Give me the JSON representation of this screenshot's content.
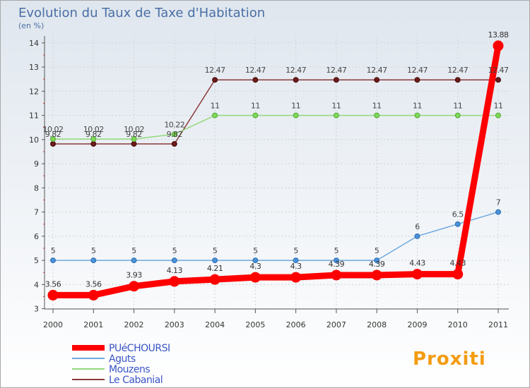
{
  "chart_data": {
    "type": "line",
    "title": "Evolution du Taux de Taxe d'Habitation",
    "ylabel": "(en %)",
    "xlabel": "",
    "x": [
      "2000",
      "2001",
      "2002",
      "2003",
      "2004",
      "2005",
      "2006",
      "2007",
      "2008",
      "2009",
      "2010",
      "2011"
    ],
    "ylim": [
      3,
      14
    ],
    "yticks": [
      "3",
      "4",
      "5",
      "6",
      "7",
      "8",
      "9",
      "10",
      "11",
      "12",
      "13",
      "14"
    ],
    "grid": true,
    "legend_position": "bottom-left",
    "series": [
      {
        "name": "PUéCHOURSI",
        "color": "#ff0000",
        "values": [
          3.56,
          3.56,
          3.93,
          4.13,
          4.21,
          4.3,
          4.3,
          4.39,
          4.39,
          4.43,
          4.43,
          13.88
        ],
        "labels": [
          "3.56",
          "3.56",
          "3.93",
          "4.13",
          "4.21",
          "4.3",
          "4.3",
          "4.39",
          "4.39",
          "4.43",
          "4.43",
          "13.88"
        ]
      },
      {
        "name": "Aguts",
        "color": "#6fa8dc",
        "values": [
          5,
          5,
          5,
          5,
          5,
          5,
          5,
          5,
          5,
          6,
          6.5,
          7
        ],
        "labels": [
          "5",
          "5",
          "5",
          "5",
          "5",
          "5",
          "5",
          "5",
          "5",
          "6",
          "6.5",
          "7"
        ]
      },
      {
        "name": "Mouzens",
        "color": "#93d97b",
        "values": [
          10.02,
          10.02,
          10.02,
          10.22,
          11,
          11,
          11,
          11,
          11,
          11,
          11,
          11
        ],
        "labels": [
          "10.02",
          "10.02",
          "10.02",
          "10.22",
          "11",
          "11",
          "11",
          "11",
          "11",
          "11",
          "11",
          "11"
        ]
      },
      {
        "name": "Le Cabanial",
        "color": "#8b3a3a",
        "values": [
          9.82,
          9.82,
          9.82,
          9.82,
          12.47,
          12.47,
          12.47,
          12.47,
          12.47,
          12.47,
          12.47,
          12.47
        ],
        "labels": [
          "9.82",
          "9.82",
          "9.82",
          "9.82",
          "12.47",
          "12.47",
          "12.47",
          "12.47",
          "12.47",
          "12.47",
          "12.47",
          "12.47"
        ]
      }
    ]
  },
  "logo": {
    "text": "Proxiti"
  },
  "colors": {
    "title": "#4a6fa5",
    "legend_text": "#3a55c7",
    "grid": "#cccccc",
    "background_top": "#dfe6ee"
  }
}
